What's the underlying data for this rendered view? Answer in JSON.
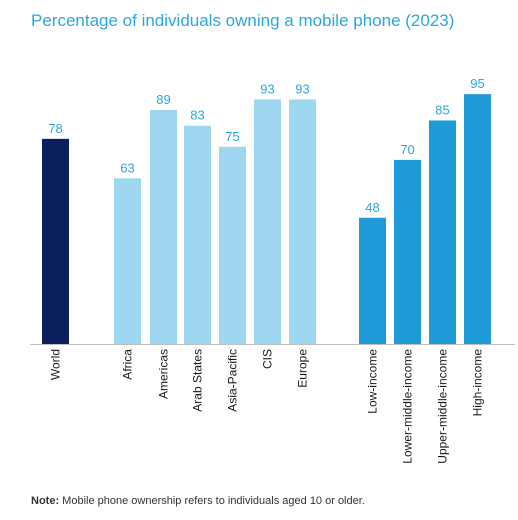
{
  "chart_data": {
    "type": "bar",
    "title": "Percentage of individuals owning a mobile phone (2023)",
    "categories": [
      "World",
      "Africa",
      "Americas",
      "Arab States",
      "Asia-Pacific",
      "CIS",
      "Europe",
      "Low-income",
      "Lower-middle-income",
      "Upper-middle-income",
      "High-income"
    ],
    "values": [
      78,
      63,
      89,
      83,
      75,
      93,
      93,
      48,
      70,
      85,
      95
    ],
    "groups": [
      "world",
      "region",
      "region",
      "region",
      "region",
      "region",
      "region",
      "income",
      "income",
      "income",
      "income"
    ],
    "ylim": [
      0,
      100
    ],
    "grid": false,
    "legend": "none"
  },
  "colors": {
    "title": "#2aa7de",
    "label": "#2aa7de",
    "world": "#0b1f5c",
    "region": "#9fd7f1",
    "income": "#1e9ad6",
    "axis": "#bfbfbf"
  },
  "note": {
    "label": "Note:",
    "text": " Mobile phone ownership refers to individuals aged 10 or older."
  }
}
